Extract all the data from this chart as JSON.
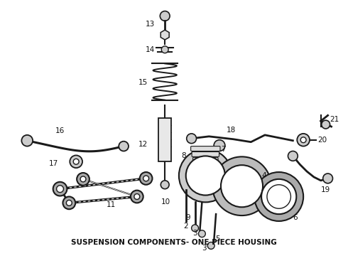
{
  "title": "SUSPENSION COMPONENTS- ONE PIECE HOUSING",
  "title_fontsize": 7.5,
  "title_fontweight": "bold",
  "bg_color": "#ffffff",
  "line_color": "#1a1a1a",
  "label_color": "#111111",
  "label_fontsize": 7.5,
  "figsize": [
    4.9,
    3.6
  ],
  "dpi": 100
}
